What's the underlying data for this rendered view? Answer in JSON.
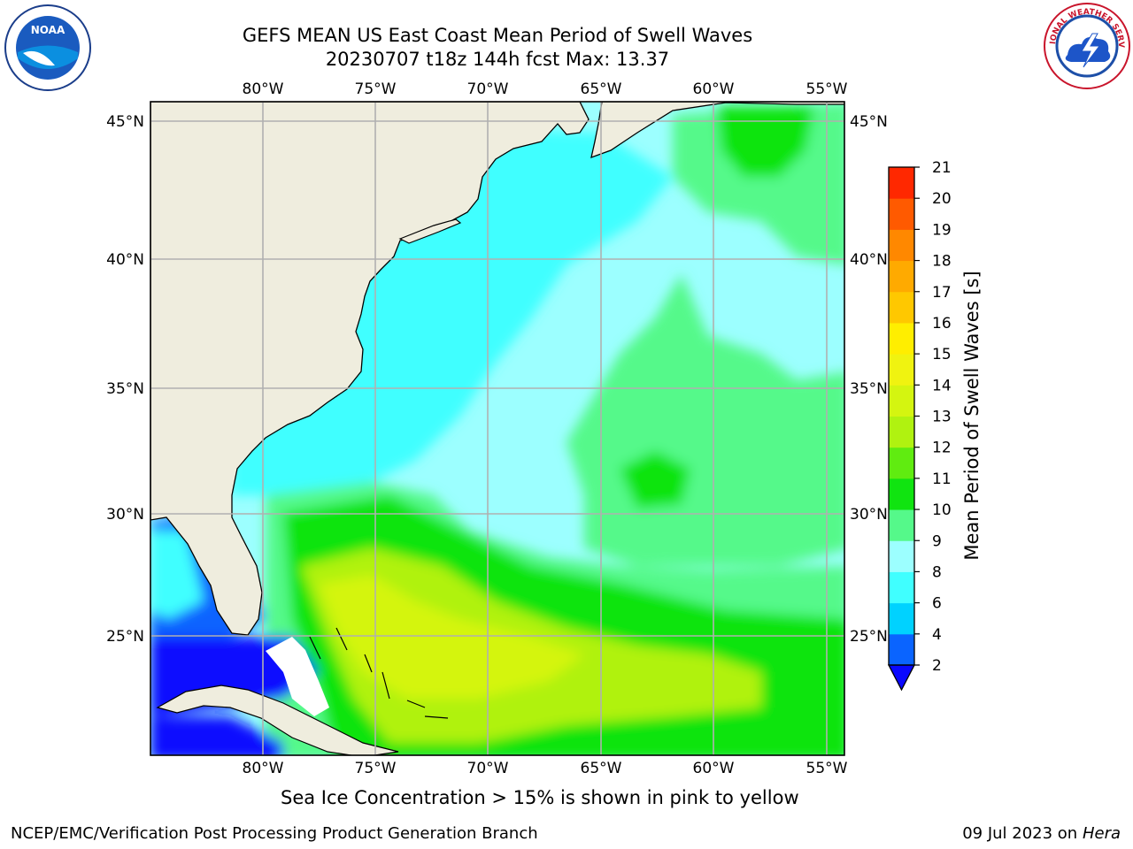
{
  "title": {
    "line1": "GEFS MEAN US East Coast Mean Period of Swell Waves",
    "line2": "20230707 t18z 144h fcst   Max: 13.37"
  },
  "map": {
    "lon_ticks": [
      "80°W",
      "75°W",
      "70°W",
      "65°W",
      "60°W",
      "55°W"
    ],
    "lat_ticks": [
      "45°N",
      "40°N",
      "35°N",
      "30°N",
      "25°N"
    ],
    "lon_values": [
      -80,
      -75,
      -70,
      -65,
      -60,
      -55
    ],
    "lat_values": [
      45,
      40,
      35,
      30,
      25
    ],
    "lon_range": [
      -85,
      -54.2
    ],
    "lat_range": [
      20.5,
      45.8
    ],
    "grid": true,
    "land_color": "#efedde",
    "grid_color": "#b0b0b0"
  },
  "colorbar": {
    "title": "Mean Period of Swell Waves [s]",
    "levels": [
      "2",
      "4",
      "6",
      "8",
      "9",
      "10",
      "11",
      "12",
      "13",
      "14",
      "15",
      "16",
      "17",
      "18",
      "19",
      "20",
      "21"
    ],
    "colors": [
      "#0a64ff",
      "#00d2ff",
      "#40ffff",
      "#9cffff",
      "#55f98a",
      "#10e410",
      "#60ec10",
      "#b0f210",
      "#d4f510",
      "#f0f310",
      "#ffee00",
      "#ffc800",
      "#ffaa00",
      "#ff8800",
      "#ff5a00",
      "#ff2800"
    ],
    "extend_color": "#0a08ff"
  },
  "footer": {
    "note": "Sea Ice Concentration > 15% is shown in pink to yellow",
    "left": "NCEP/EMC/Verification Post Processing Product Generation Branch",
    "date": "09 Jul 2023 on ",
    "machine": "Hera"
  },
  "logos": {
    "noaa": "NOAA",
    "nws": "NATIONAL WEATHER SERVICE"
  }
}
